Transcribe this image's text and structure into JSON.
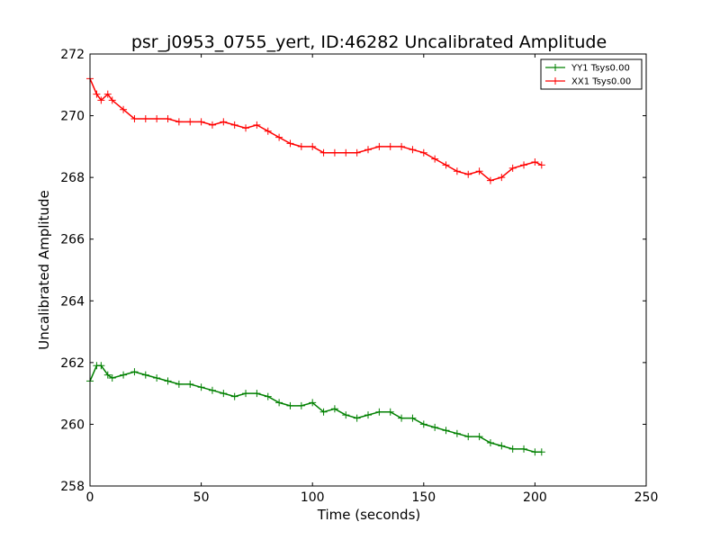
{
  "chart_data": {
    "type": "line",
    "title": "psr_j0953_0755_yert, ID:46282 Uncalibrated Amplitude",
    "xlabel": "Time (seconds)",
    "ylabel": "Uncalibrated Amplitude",
    "xlim": [
      0,
      250
    ],
    "ylim": [
      258,
      272
    ],
    "xticks": [
      "0",
      "50",
      "100",
      "150",
      "200",
      "250"
    ],
    "yticks": [
      "258",
      "260",
      "262",
      "264",
      "266",
      "268",
      "270",
      "272"
    ],
    "grid": false,
    "legend_position": "top-right",
    "marker": "plus",
    "series": [
      {
        "name": "YY1 Tsys0.00",
        "color": "#008000",
        "x": [
          0,
          3,
          5,
          8,
          10,
          15,
          20,
          25,
          30,
          35,
          40,
          45,
          50,
          55,
          60,
          65,
          70,
          75,
          80,
          85,
          90,
          95,
          100,
          105,
          110,
          115,
          120,
          125,
          130,
          135,
          140,
          145,
          150,
          155,
          160,
          165,
          170,
          175,
          180,
          185,
          190,
          195,
          200,
          203
        ],
        "y": [
          261.4,
          261.9,
          261.9,
          261.6,
          261.5,
          261.6,
          261.7,
          261.6,
          261.5,
          261.4,
          261.3,
          261.3,
          261.2,
          261.1,
          261.0,
          260.9,
          261.0,
          261.0,
          260.9,
          260.7,
          260.6,
          260.6,
          260.7,
          260.4,
          260.5,
          260.3,
          260.2,
          260.3,
          260.4,
          260.4,
          260.2,
          260.2,
          260.0,
          259.9,
          259.8,
          259.7,
          259.6,
          259.6,
          259.4,
          259.3,
          259.2,
          259.2,
          259.1,
          259.1
        ]
      },
      {
        "name": "XX1 Tsys0.00",
        "color": "#ff0000",
        "x": [
          0,
          3,
          5,
          8,
          10,
          15,
          20,
          25,
          30,
          35,
          40,
          45,
          50,
          55,
          60,
          65,
          70,
          75,
          80,
          85,
          90,
          95,
          100,
          105,
          110,
          115,
          120,
          125,
          130,
          135,
          140,
          145,
          150,
          155,
          160,
          165,
          170,
          175,
          180,
          185,
          190,
          195,
          200,
          203
        ],
        "y": [
          271.2,
          270.7,
          270.5,
          270.7,
          270.5,
          270.2,
          269.9,
          269.9,
          269.9,
          269.9,
          269.8,
          269.8,
          269.8,
          269.7,
          269.8,
          269.7,
          269.6,
          269.7,
          269.5,
          269.3,
          269.1,
          269.0,
          269.0,
          268.8,
          268.8,
          268.8,
          268.8,
          268.9,
          269.0,
          269.0,
          269.0,
          268.9,
          268.8,
          268.6,
          268.4,
          268.2,
          268.1,
          268.2,
          267.9,
          268.0,
          268.3,
          268.4,
          268.5,
          268.4
        ]
      }
    ]
  }
}
